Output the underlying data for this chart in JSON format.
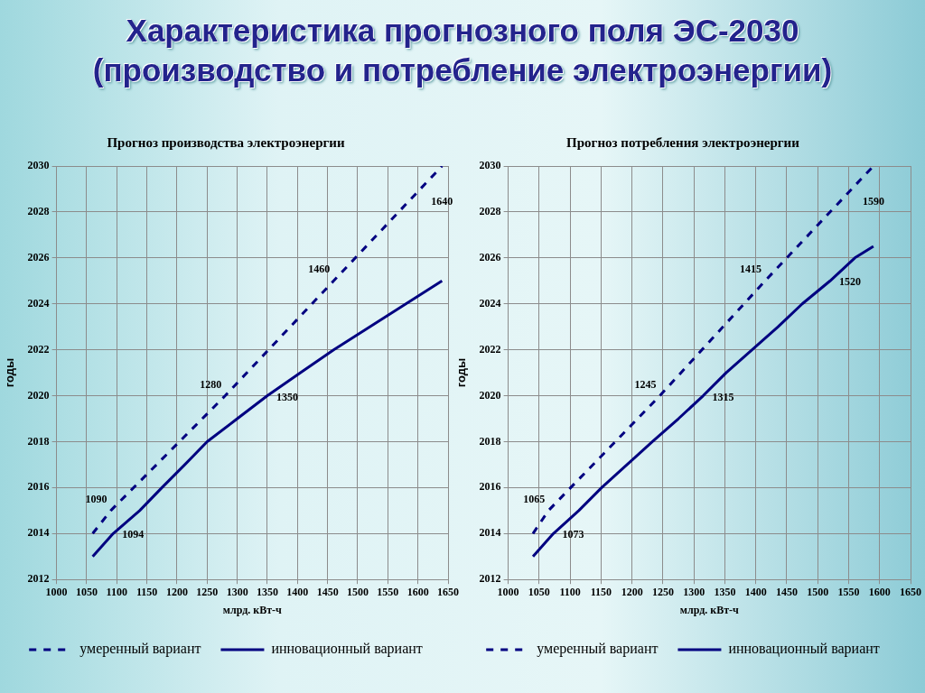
{
  "chart_data": [
    {
      "type": "other",
      "title": "Характеристика прогнозного поля ЭС-2030",
      "subtitle": "(производство и потребление электроэнергии)"
    },
    {
      "type": "line",
      "title": "Прогноз производства электроэнергии",
      "xlabel": "млрд. кВт-ч",
      "ylabel": "годы",
      "xlim": [
        1000,
        1650
      ],
      "xticks": [
        1000,
        1050,
        1100,
        1150,
        1200,
        1250,
        1300,
        1350,
        1400,
        1450,
        1500,
        1550,
        1600,
        1650
      ],
      "ylim": [
        2012,
        2030
      ],
      "yticks": [
        2012,
        2014,
        2016,
        2018,
        2020,
        2022,
        2024,
        2026,
        2028,
        2030
      ],
      "grid": true,
      "legend": "bottom",
      "series": [
        {
          "name": "умеренный вариант",
          "color": "#000080",
          "line_style": "dashed",
          "x": [
            1060,
            1090,
            1280,
            1460,
            1640
          ],
          "values": [
            2014,
            2015,
            2020,
            2025,
            2030
          ]
        },
        {
          "name": "инновационный вариант",
          "color": "#000080",
          "line_style": "solid",
          "x": [
            1060,
            1094,
            1138,
            1175,
            1213,
            1250,
            1300,
            1350,
            1405,
            1460,
            1520,
            1580,
            1640
          ],
          "values": [
            2013,
            2014,
            2015,
            2016,
            2017,
            2018,
            2019,
            2020,
            2021,
            2022,
            2023,
            2024,
            2025
          ]
        }
      ],
      "annotations": [
        {
          "text": "1090",
          "x": 1090,
          "y": 2015
        },
        {
          "text": "1094",
          "x": 1094,
          "y": 2014
        },
        {
          "text": "1280",
          "x": 1280,
          "y": 2020
        },
        {
          "text": "1350",
          "x": 1350,
          "y": 2020
        },
        {
          "text": "1460",
          "x": 1460,
          "y": 2025
        },
        {
          "text": "1640",
          "x": 1640,
          "y": 2030
        }
      ]
    },
    {
      "type": "line",
      "title": "Прогноз потребления электроэнергии",
      "xlabel": "млрд. кВт-ч",
      "ylabel": "годы",
      "xlim": [
        1000,
        1650
      ],
      "xticks": [
        1000,
        1050,
        1100,
        1150,
        1200,
        1250,
        1300,
        1350,
        1400,
        1450,
        1500,
        1550,
        1600,
        1650
      ],
      "ylim": [
        2012,
        2030
      ],
      "yticks": [
        2012,
        2014,
        2016,
        2018,
        2020,
        2022,
        2024,
        2026,
        2028,
        2030
      ],
      "grid": true,
      "legend": "bottom",
      "series": [
        {
          "name": "умеренный вариант",
          "color": "#000080",
          "line_style": "dashed",
          "x": [
            1040,
            1065,
            1245,
            1415,
            1590
          ],
          "values": [
            2014,
            2015,
            2020,
            2025,
            2030
          ]
        },
        {
          "name": "инновационный вариант",
          "color": "#000080",
          "line_style": "solid",
          "x": [
            1040,
            1073,
            1114,
            1151,
            1192,
            1233,
            1275,
            1315,
            1352,
            1394,
            1436,
            1475,
            1520,
            1560,
            1590
          ],
          "values": [
            2013,
            2014,
            2015,
            2016,
            2017,
            2018,
            2019,
            2020,
            2021,
            2022,
            2023,
            2024,
            2025,
            2026,
            2026.5
          ]
        }
      ],
      "annotations": [
        {
          "text": "1065",
          "x": 1065,
          "y": 2015
        },
        {
          "text": "1073",
          "x": 1073,
          "y": 2014
        },
        {
          "text": "1245",
          "x": 1245,
          "y": 2020
        },
        {
          "text": "1315",
          "x": 1315,
          "y": 2020
        },
        {
          "text": "1415",
          "x": 1415,
          "y": 2025
        },
        {
          "text": "1520",
          "x": 1520,
          "y": 2025
        },
        {
          "text": "1590",
          "x": 1590,
          "y": 2030
        }
      ]
    }
  ]
}
